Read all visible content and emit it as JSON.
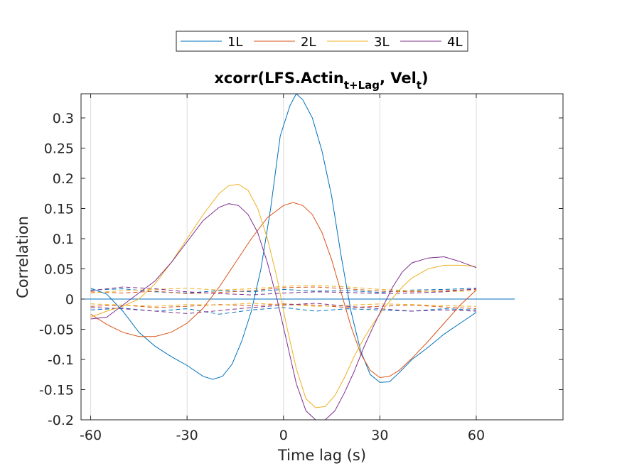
{
  "chart_data": {
    "type": "line",
    "title": {
      "prefix": "xcorr(LFS.Actin",
      "sub1": "t+Lag",
      "middle": ", Vel",
      "sub2": "t",
      "suffix": ")"
    },
    "xlabel": "Time lag (s)",
    "ylabel": "Correlation",
    "xlim": [
      -63,
      87
    ],
    "ylim": [
      -0.2,
      0.34
    ],
    "xticks": [
      -60,
      -30,
      0,
      30,
      60
    ],
    "xtick_labels": [
      "-60",
      "-30",
      "0",
      "30",
      "60"
    ],
    "yticks": [
      -0.2,
      -0.15,
      -0.1,
      -0.05,
      0,
      0.05,
      0.1,
      0.15,
      0.2,
      0.25,
      0.3
    ],
    "ytick_labels": [
      "-0.2",
      "-0.15",
      "-0.1",
      "-0.05",
      "0",
      "0.05",
      "0.1",
      "0.15",
      "0.2",
      "0.25",
      "0.3"
    ],
    "grid": "x",
    "legend": {
      "location": "top-center",
      "orientation": "horizontal"
    },
    "zero_line": {
      "x": [
        -63,
        72
      ],
      "y": 0,
      "color": "#0072BD"
    },
    "series": [
      {
        "name": "1L",
        "color": "#0072BD",
        "x": [
          -60,
          -55,
          -50,
          -45,
          -40,
          -35,
          -30,
          -25,
          -22,
          -19,
          -16,
          -13,
          -10,
          -7,
          -4,
          -1,
          2,
          4,
          6,
          9,
          12,
          15,
          18,
          21,
          24,
          27,
          30,
          33,
          36,
          40,
          45,
          50,
          55,
          60
        ],
        "y": [
          0.018,
          0.008,
          -0.02,
          -0.055,
          -0.078,
          -0.095,
          -0.11,
          -0.128,
          -0.133,
          -0.128,
          -0.108,
          -0.07,
          -0.02,
          0.05,
          0.15,
          0.27,
          0.32,
          0.34,
          0.33,
          0.3,
          0.245,
          0.17,
          0.07,
          -0.02,
          -0.085,
          -0.125,
          -0.138,
          -0.137,
          -0.122,
          -0.1,
          -0.08,
          -0.058,
          -0.04,
          -0.022
        ]
      },
      {
        "name": "2L",
        "color": "#D95319",
        "x": [
          -60,
          -55,
          -50,
          -45,
          -40,
          -35,
          -30,
          -25,
          -20,
          -15,
          -10,
          -5,
          0,
          3,
          6,
          9,
          12,
          15,
          18,
          21,
          24,
          27,
          30,
          33,
          36,
          40,
          45,
          50,
          55,
          60
        ],
        "y": [
          -0.025,
          -0.042,
          -0.055,
          -0.062,
          -0.062,
          -0.055,
          -0.04,
          -0.015,
          0.02,
          0.06,
          0.1,
          0.135,
          0.155,
          0.16,
          0.155,
          0.14,
          0.11,
          0.065,
          0.01,
          -0.045,
          -0.09,
          -0.118,
          -0.13,
          -0.128,
          -0.118,
          -0.098,
          -0.07,
          -0.04,
          -0.01,
          0.015
        ]
      },
      {
        "name": "3L",
        "color": "#EDB120",
        "x": [
          -60,
          -55,
          -50,
          -45,
          -40,
          -35,
          -30,
          -25,
          -20,
          -17,
          -14,
          -11,
          -8,
          -5,
          -2,
          1,
          4,
          7,
          10,
          13,
          16,
          19,
          22,
          25,
          28,
          31,
          34,
          37,
          40,
          45,
          50,
          55,
          58,
          60
        ],
        "y": [
          -0.03,
          -0.02,
          -0.012,
          0.0,
          0.025,
          0.06,
          0.1,
          0.14,
          0.175,
          0.188,
          0.19,
          0.18,
          0.15,
          0.1,
          0.035,
          -0.045,
          -0.115,
          -0.165,
          -0.18,
          -0.178,
          -0.16,
          -0.13,
          -0.095,
          -0.065,
          -0.04,
          -0.017,
          0.002,
          0.02,
          0.035,
          0.05,
          0.056,
          0.056,
          0.055,
          0.054
        ]
      },
      {
        "name": "4L",
        "color": "#7E2F8E",
        "x": [
          -60,
          -55,
          -50,
          -45,
          -40,
          -35,
          -30,
          -25,
          -20,
          -17,
          -14,
          -11,
          -8,
          -5,
          -2,
          1,
          4,
          7,
          10,
          13,
          16,
          19,
          22,
          25,
          28,
          31,
          34,
          37,
          40,
          45,
          50,
          55,
          60
        ],
        "y": [
          -0.033,
          -0.03,
          -0.01,
          0.01,
          0.03,
          0.06,
          0.095,
          0.13,
          0.152,
          0.158,
          0.155,
          0.14,
          0.11,
          0.06,
          0.0,
          -0.07,
          -0.14,
          -0.185,
          -0.2,
          -0.2,
          -0.185,
          -0.155,
          -0.12,
          -0.08,
          -0.045,
          -0.012,
          0.02,
          0.045,
          0.06,
          0.068,
          0.07,
          0.062,
          0.052
        ]
      }
    ],
    "confidence_bounds": [
      {
        "color": "#0072BD",
        "x": [
          -60,
          -50,
          -40,
          -30,
          -20,
          -10,
          0,
          10,
          20,
          30,
          40,
          50,
          60
        ],
        "y": [
          0.015,
          0.017,
          0.012,
          0.01,
          0.014,
          0.012,
          0.016,
          0.013,
          0.014,
          0.011,
          0.015,
          0.016,
          0.018
        ]
      },
      {
        "color": "#0072BD",
        "x": [
          -60,
          -50,
          -40,
          -30,
          -20,
          -10,
          0,
          10,
          20,
          30,
          40,
          50,
          60
        ],
        "y": [
          -0.018,
          -0.015,
          -0.02,
          -0.016,
          -0.025,
          -0.018,
          -0.014,
          -0.02,
          -0.016,
          -0.018,
          -0.02,
          -0.016,
          -0.018
        ]
      },
      {
        "color": "#D95319",
        "x": [
          -60,
          -50,
          -40,
          -30,
          -20,
          -10,
          0,
          10,
          20,
          30,
          40,
          50,
          60
        ],
        "y": [
          0.012,
          0.01,
          0.013,
          0.009,
          0.011,
          0.014,
          0.019,
          0.02,
          0.017,
          0.013,
          0.012,
          0.014,
          0.016
        ]
      },
      {
        "color": "#D95319",
        "x": [
          -60,
          -50,
          -40,
          -30,
          -20,
          -10,
          0,
          10,
          20,
          30,
          40,
          50,
          60
        ],
        "y": [
          -0.012,
          -0.01,
          -0.014,
          -0.012,
          -0.009,
          -0.011,
          -0.008,
          -0.01,
          -0.014,
          -0.012,
          -0.01,
          -0.013,
          -0.016
        ]
      },
      {
        "color": "#EDB120",
        "x": [
          -60,
          -50,
          -40,
          -30,
          -20,
          -10,
          0,
          10,
          20,
          30,
          40,
          50,
          60
        ],
        "y": [
          0.01,
          0.014,
          0.016,
          0.018,
          0.015,
          0.017,
          0.021,
          0.023,
          0.02,
          0.016,
          0.014,
          0.012,
          0.014
        ]
      },
      {
        "color": "#EDB120",
        "x": [
          -60,
          -50,
          -40,
          -30,
          -20,
          -10,
          0,
          10,
          20,
          30,
          40,
          50,
          60
        ],
        "y": [
          -0.008,
          -0.01,
          -0.012,
          -0.009,
          -0.01,
          -0.007,
          -0.009,
          -0.012,
          -0.01,
          -0.008,
          -0.009,
          -0.011,
          -0.012
        ]
      },
      {
        "color": "#7E2F8E",
        "x": [
          -60,
          -50,
          -40,
          -30,
          -20,
          -10,
          0,
          10,
          20,
          30,
          40,
          50,
          60
        ],
        "y": [
          0.014,
          0.02,
          0.017,
          0.012,
          0.009,
          0.007,
          0.01,
          0.012,
          0.011,
          0.009,
          0.01,
          0.012,
          0.017
        ]
      },
      {
        "color": "#7E2F8E",
        "x": [
          -60,
          -50,
          -40,
          -30,
          -20,
          -10,
          0,
          10,
          20,
          30,
          40,
          50,
          60
        ],
        "y": [
          -0.014,
          -0.016,
          -0.02,
          -0.024,
          -0.019,
          -0.014,
          -0.01,
          -0.007,
          -0.012,
          -0.016,
          -0.02,
          -0.018,
          -0.02
        ]
      }
    ]
  }
}
